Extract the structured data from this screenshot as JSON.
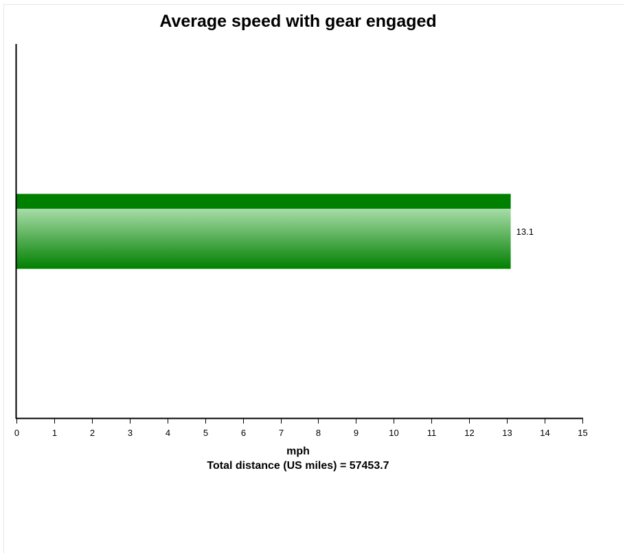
{
  "chart_data": {
    "type": "bar",
    "orientation": "horizontal",
    "title": "Average speed with gear engaged",
    "xlabel": "mph",
    "subtitle": "Total distance (US miles) = 57453.7",
    "categories": [
      ""
    ],
    "values": [
      13.1
    ],
    "value_labels": [
      "13.1"
    ],
    "xlim": [
      0,
      15
    ],
    "xticks": [
      "0",
      "1",
      "2",
      "3",
      "4",
      "5",
      "6",
      "7",
      "8",
      "9",
      "10",
      "11",
      "12",
      "13",
      "14",
      "15"
    ],
    "grid": false,
    "legend": "none",
    "colors": {
      "bar_dark": "#008000",
      "bar_light": "#a8dca8",
      "axis": "#000000"
    }
  }
}
